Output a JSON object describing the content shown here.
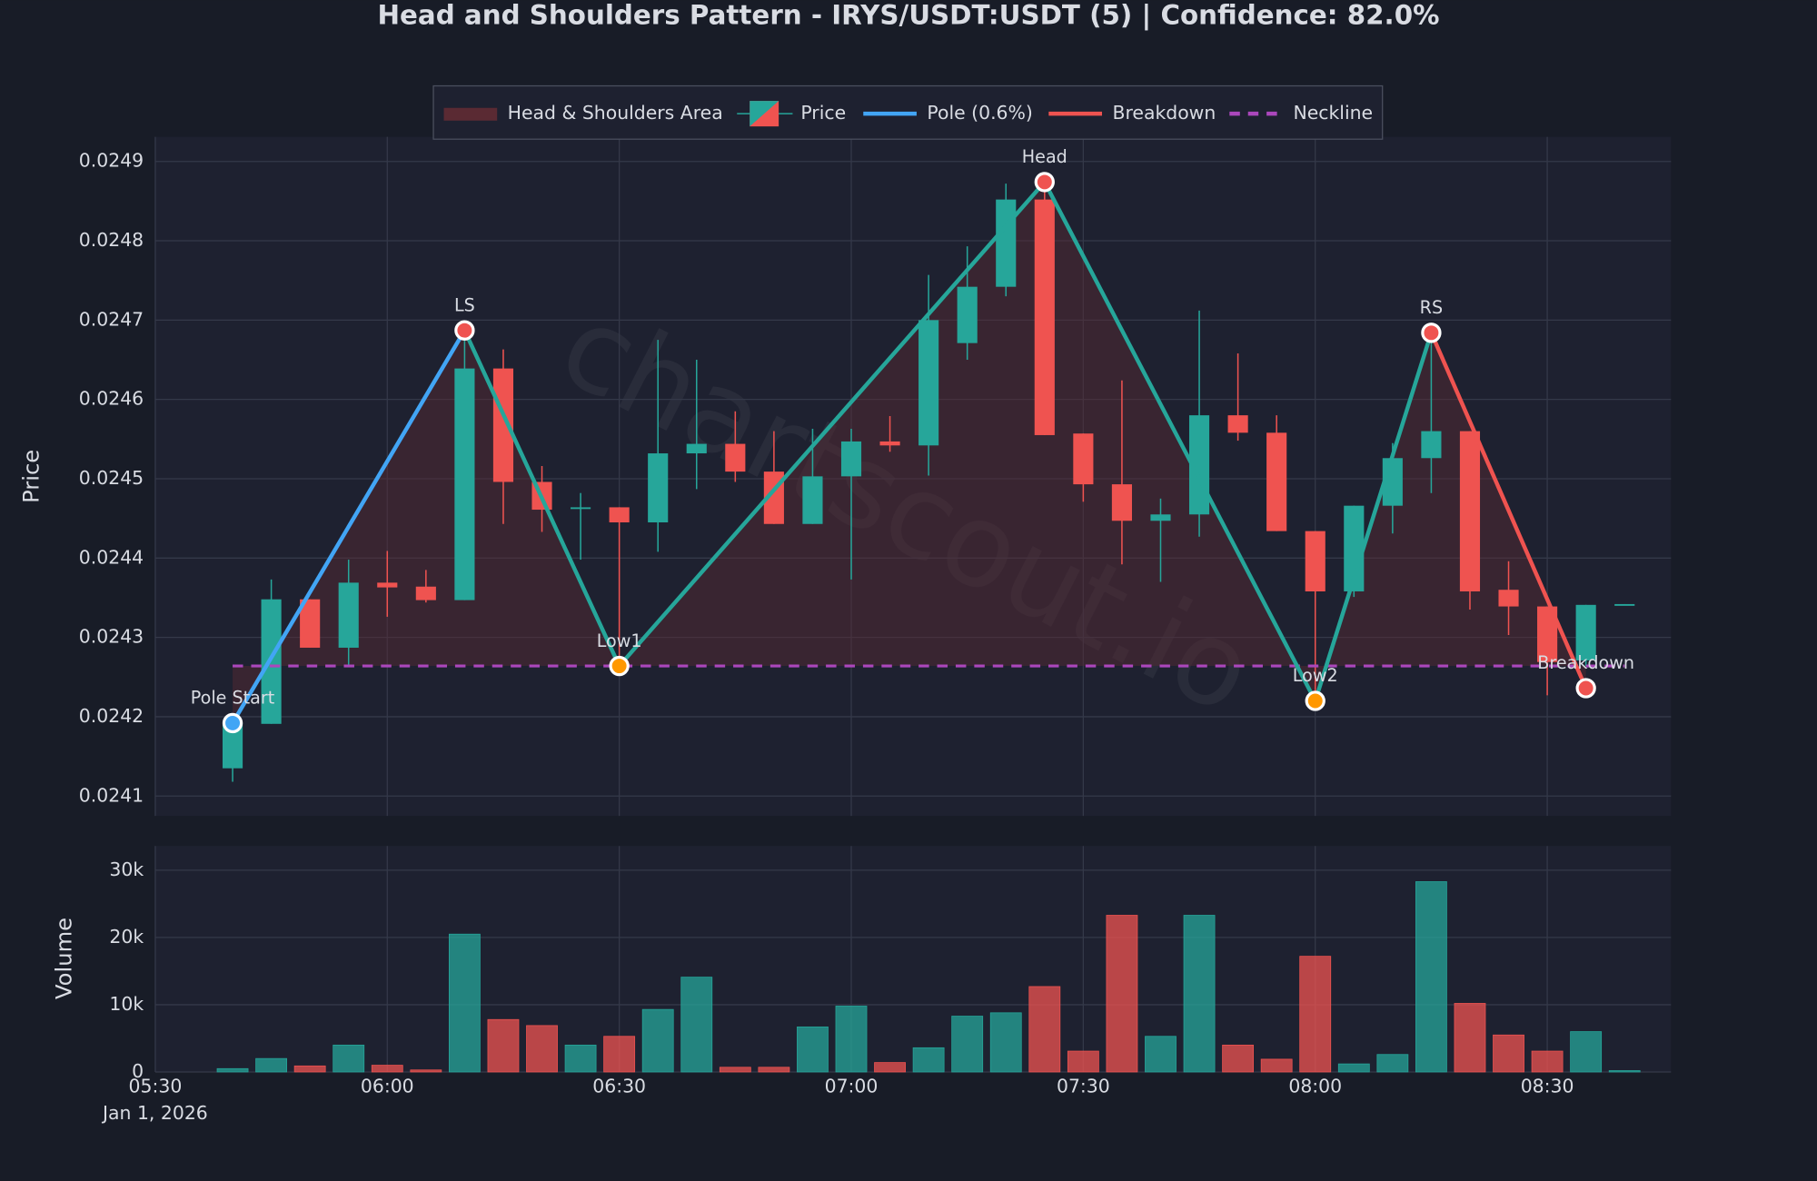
{
  "chart_data": {
    "type": "candlestick",
    "title": "Head and Shoulders Pattern - IRYS/USDT:USDT (5) | Confidence: 82.0%",
    "watermark": "chartscout.io",
    "x": [
      "05:40",
      "05:45",
      "05:50",
      "05:55",
      "06:00",
      "06:05",
      "06:10",
      "06:15",
      "06:20",
      "06:25",
      "06:30",
      "06:35",
      "06:40",
      "06:45",
      "06:50",
      "06:55",
      "07:00",
      "07:05",
      "07:10",
      "07:15",
      "07:20",
      "07:25",
      "07:30",
      "07:35",
      "07:40",
      "07:45",
      "07:50",
      "07:55",
      "08:00",
      "08:05",
      "08:10",
      "08:15",
      "08:20",
      "08:25",
      "08:30",
      "08:35",
      "08:40"
    ],
    "open": [
      0.024135,
      0.024191,
      0.024348,
      0.024287,
      0.024369,
      0.024364,
      0.024347,
      0.024639,
      0.024496,
      0.024463,
      0.024464,
      0.024445,
      0.024532,
      0.024544,
      0.024509,
      0.024443,
      0.024503,
      0.024547,
      0.024542,
      0.024671,
      0.024742,
      0.024852,
      0.024557,
      0.024493,
      0.024447,
      0.024455,
      0.02458,
      0.024558,
      0.024434,
      0.024358,
      0.024466,
      0.024526,
      0.02456,
      0.02436,
      0.024339,
      0.024271,
      0.024341
    ],
    "high": [
      0.024192,
      0.024373,
      0.024348,
      0.024398,
      0.024409,
      0.024385,
      0.024687,
      0.024663,
      0.024516,
      0.024482,
      0.024464,
      0.024675,
      0.02465,
      0.024585,
      0.02456,
      0.024563,
      0.024563,
      0.024579,
      0.024757,
      0.024793,
      0.024872,
      0.024874,
      0.024557,
      0.024624,
      0.024475,
      0.024712,
      0.024658,
      0.02458,
      0.024434,
      0.024466,
      0.024545,
      0.024684,
      0.02456,
      0.024396,
      0.024339,
      0.024341,
      0.024342
    ],
    "low": [
      0.024118,
      0.024191,
      0.024287,
      0.024264,
      0.024326,
      0.024344,
      0.024347,
      0.024443,
      0.024433,
      0.024398,
      0.024264,
      0.024408,
      0.024487,
      0.024496,
      0.024443,
      0.024443,
      0.024373,
      0.024534,
      0.024504,
      0.02465,
      0.02473,
      0.024555,
      0.024471,
      0.024392,
      0.02437,
      0.024427,
      0.024548,
      0.024434,
      0.02422,
      0.024351,
      0.024431,
      0.024482,
      0.024335,
      0.024303,
      0.024227,
      0.024264,
      0.024341
    ],
    "close": [
      0.024192,
      0.024348,
      0.024287,
      0.024369,
      0.024363,
      0.024347,
      0.024639,
      0.024496,
      0.024461,
      0.024464,
      0.024445,
      0.024532,
      0.024544,
      0.024509,
      0.024443,
      0.024503,
      0.024547,
      0.024542,
      0.0247,
      0.024742,
      0.024852,
      0.024555,
      0.024493,
      0.024447,
      0.024455,
      0.02458,
      0.024558,
      0.024434,
      0.024358,
      0.024466,
      0.024526,
      0.02456,
      0.024358,
      0.024339,
      0.024269,
      0.024341,
      0.024342
    ],
    "volume": [
      500,
      2000,
      900,
      4000,
      1000,
      300,
      20500,
      7800,
      6900,
      4000,
      5300,
      9300,
      14100,
      700,
      700,
      6700,
      9800,
      1400,
      3600,
      8300,
      8800,
      12700,
      3100,
      23300,
      5300,
      23300,
      4000,
      1900,
      17200,
      1200,
      2600,
      28300,
      10200,
      5500,
      3100,
      6000,
      200
    ],
    "up_color": "#26a69a",
    "down_color": "#ef5350",
    "ylabel": "Price",
    "ylim": [
      0.024075,
      0.024931
    ],
    "yticks": [
      0.0241,
      0.0242,
      0.0243,
      0.0244,
      0.0245,
      0.0246,
      0.0247,
      0.0248,
      0.0249
    ],
    "grid": true,
    "xlim": [
      "05:30",
      "08:46"
    ],
    "xticks": [
      "05:30",
      "06:00",
      "06:30",
      "07:00",
      "07:30",
      "08:00",
      "08:30"
    ],
    "date_label": "Jan 1, 2026",
    "volume_panel": {
      "ylabel": "Volume",
      "ylim": [
        0,
        33600
      ],
      "yticks": [
        0,
        {
          "value": 10000,
          "label": "10k"
        },
        {
          "value": 20000,
          "label": "20k"
        },
        {
          "value": 30000,
          "label": "30k"
        }
      ]
    },
    "legend": {
      "loc": "upper center",
      "items": [
        {
          "label": "Head & Shoulders Area",
          "color": "#5a2a33"
        },
        {
          "label": "Price",
          "color": "#26a69a"
        },
        {
          "label": "Pole (0.6%)",
          "color": "#42a5f5"
        },
        {
          "label": "Breakdown",
          "color": "#ef5350"
        },
        {
          "label": "Neckline",
          "color": "#ab47bc"
        }
      ]
    },
    "pattern": {
      "points": [
        {
          "label": "Pole Start",
          "x": "05:40",
          "y": 0.024192,
          "color": "#42a5f5"
        },
        {
          "label": "LS",
          "x": "06:10",
          "y": 0.024687,
          "color": "#ef5350"
        },
        {
          "label": "Low1",
          "x": "06:30",
          "y": 0.024264,
          "color": "#ff9800"
        },
        {
          "label": "Head",
          "x": "07:25",
          "y": 0.024874,
          "color": "#ef5350"
        },
        {
          "label": "Low2",
          "x": "08:00",
          "y": 0.02422,
          "color": "#ff9800"
        },
        {
          "label": "RS",
          "x": "08:15",
          "y": 0.024684,
          "color": "#ef5350"
        },
        {
          "label": "Breakdown",
          "x": "08:35",
          "y": 0.024236,
          "color": "#ef5350"
        }
      ],
      "neckline": 0.024264,
      "neckline_x": [
        "05:40",
        "08:40"
      ],
      "pattern_color": "#26a69a"
    }
  }
}
